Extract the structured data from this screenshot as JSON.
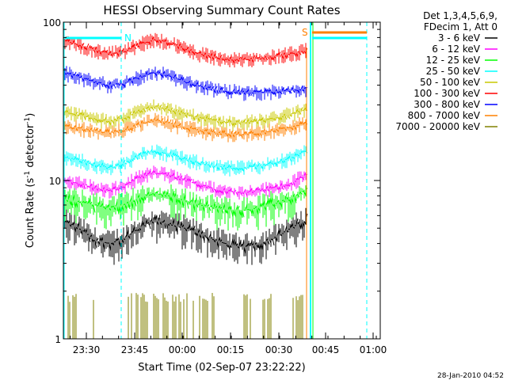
{
  "chart_data": {
    "type": "line",
    "title": "HESSI Observing Summary Count Rates",
    "xlabel": "Start Time (02-Sep-07 23:22:22)",
    "ylabel_main": "Count Rate (s",
    "ylabel_sup": "-1",
    "ylabel_rest": " detector",
    "ylabel_sup2": "-1",
    "ylabel_end": ")",
    "yscale": "log",
    "ylim": [
      1,
      100
    ],
    "y_ticks": [
      {
        "value": 1,
        "label": "1"
      },
      {
        "value": 10,
        "label": "10"
      },
      {
        "value": 100,
        "label": "100"
      }
    ],
    "x_ticks": [
      "23:30",
      "23:45",
      "00:00",
      "00:15",
      "00:30",
      "00:45",
      "01:00"
    ],
    "legend_header": [
      "Det 1,3,4,5,6,9,",
      "FDecim 1, Att 0"
    ],
    "series": [
      {
        "name": "3 - 6 keV",
        "color": "#000000",
        "values": [
          5.5,
          5.0,
          4.2,
          4.0,
          4.3,
          5.0,
          5.6,
          5.3,
          5.0,
          4.6,
          4.2,
          3.9,
          3.8,
          4.0,
          4.4,
          5.0,
          5.6
        ]
      },
      {
        "name": "6 - 12 keV",
        "color": "#ff00ff",
        "values": [
          10.0,
          9.6,
          9.0,
          8.6,
          9.2,
          10.5,
          11.2,
          10.8,
          10.0,
          9.4,
          8.8,
          8.5,
          8.4,
          8.7,
          9.0,
          9.6,
          10.8
        ]
      },
      {
        "name": "12 - 25 keV",
        "color": "#00ff00",
        "values": [
          7.6,
          7.3,
          7.0,
          6.7,
          7.0,
          7.8,
          8.3,
          8.0,
          7.4,
          7.0,
          6.7,
          6.5,
          6.5,
          6.8,
          7.2,
          7.7,
          8.6
        ]
      },
      {
        "name": "25 - 50 keV",
        "color": "#00ffff",
        "values": [
          14.0,
          13.4,
          12.6,
          12.0,
          12.8,
          14.4,
          15.4,
          14.6,
          13.6,
          12.9,
          12.3,
          12.0,
          12.0,
          12.4,
          13.0,
          13.8,
          15.4
        ]
      },
      {
        "name": "50 - 100 keV",
        "color": "#c8c800",
        "values": [
          27.0,
          26.0,
          24.6,
          23.6,
          24.8,
          27.6,
          29.4,
          28.0,
          26.2,
          24.8,
          23.8,
          23.2,
          23.2,
          23.8,
          24.8,
          26.2,
          28.0
        ]
      },
      {
        "name": "100 - 300 keV",
        "color": "#ff0000",
        "values": [
          76.0,
          72.0,
          67.0,
          63.0,
          65.0,
          72.0,
          78.0,
          74.0,
          68.0,
          63.0,
          60.0,
          58.0,
          58.0,
          59.0,
          61.0,
          63.0,
          66.0
        ]
      },
      {
        "name": "300 - 800 keV",
        "color": "#0000ff",
        "values": [
          48.0,
          45.0,
          42.0,
          40.0,
          41.0,
          45.0,
          48.0,
          46.0,
          42.0,
          39.5,
          37.5,
          36.5,
          36.0,
          36.0,
          36.5,
          37.0,
          38.0
        ]
      },
      {
        "name": "800 - 7000 keV",
        "color": "#ff8000",
        "values": [
          22.0,
          21.4,
          20.6,
          20.0,
          20.8,
          22.6,
          24.0,
          23.0,
          21.6,
          20.6,
          20.0,
          19.6,
          19.6,
          20.0,
          20.8,
          21.6,
          23.0
        ]
      },
      {
        "name": "7000 - 20000 keV",
        "color": "#808000",
        "values": [
          1.0,
          1.0,
          1.0,
          1.0,
          1.0,
          1.0,
          1.0,
          1.0,
          1.0,
          1.0,
          1.0,
          1.0,
          1.0,
          1.0,
          1.0,
          1.0,
          1.0
        ]
      }
    ],
    "markers": [
      {
        "label": "N",
        "color": "#00ffff"
      },
      {
        "label": "S",
        "color": "#ff8000"
      }
    ],
    "timestamp": "28-Jan-2010 04:52"
  }
}
